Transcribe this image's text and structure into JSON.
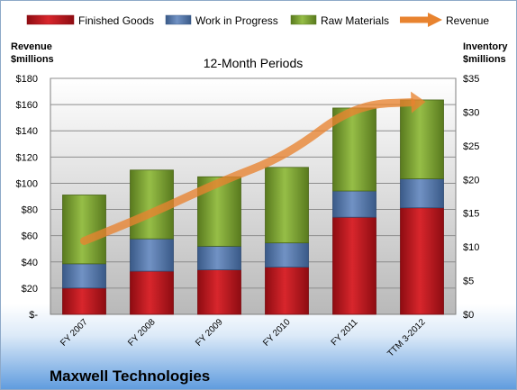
{
  "chart_data": {
    "type": "bar",
    "stacked": true,
    "title": "12-Month Periods",
    "company": "Maxwell Technologies",
    "categories": [
      "FY 2007",
      "FY 2008",
      "FY 2009",
      "FY 2010",
      "FY 2011",
      "TTM 3-2012"
    ],
    "left_axis": {
      "label_line1": "Revenue",
      "label_line2": "$millions",
      "min": 0,
      "max": 180,
      "ticks": [
        0,
        20,
        40,
        60,
        80,
        100,
        120,
        140,
        160,
        180
      ],
      "tick_labels": [
        "$-",
        "$20",
        "$40",
        "$60",
        "$80",
        "$100",
        "$120",
        "$140",
        "$160",
        "$180"
      ]
    },
    "right_axis": {
      "label_line1": "Inventory",
      "label_line2": "$millions",
      "min": 0,
      "max": 35,
      "ticks": [
        0,
        5,
        10,
        15,
        20,
        25,
        30,
        35
      ],
      "tick_labels": [
        "$0",
        "$5",
        "$10",
        "$15",
        "$20",
        "$25",
        "$30",
        "$35"
      ]
    },
    "series": [
      {
        "name": "Finished Goods",
        "type": "bar",
        "axis": "right",
        "color": "#C0151E",
        "values": [
          3.9,
          6.4,
          6.6,
          7.0,
          14.4,
          15.8
        ]
      },
      {
        "name": "Work in Progress",
        "type": "bar",
        "axis": "right",
        "color": "#4F73A8",
        "values": [
          3.6,
          4.8,
          3.5,
          3.6,
          3.9,
          4.3
        ]
      },
      {
        "name": "Raw Materials",
        "type": "bar",
        "axis": "right",
        "color": "#7AA02E",
        "values": [
          10.2,
          10.2,
          10.3,
          11.2,
          12.3,
          11.7
        ]
      },
      {
        "name": "Revenue",
        "type": "line",
        "axis": "left",
        "color": "#E8832F",
        "values": [
          56,
          77,
          101,
          121,
          160,
          162
        ]
      }
    ],
    "legend_position": "top",
    "grid": true
  }
}
